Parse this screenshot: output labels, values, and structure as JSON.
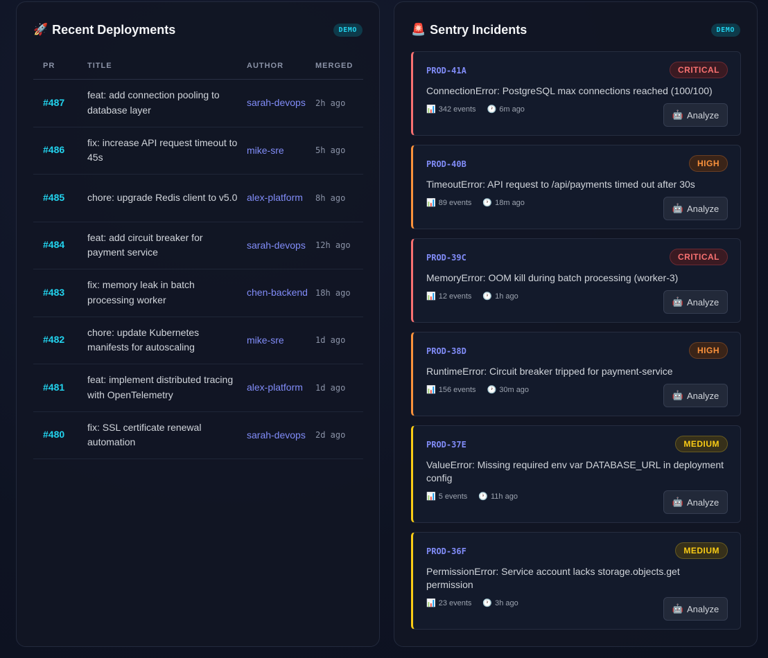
{
  "deployments": {
    "title": "Recent Deployments",
    "icon": "rocket-icon",
    "emoji": "🚀",
    "badge": "DEMO",
    "columns": [
      "PR",
      "TITLE",
      "AUTHOR",
      "MERGED"
    ],
    "rows": [
      {
        "pr": "#487",
        "title": "feat: add connection pooling to database layer",
        "author": "sarah-devops",
        "merged": "2h ago"
      },
      {
        "pr": "#486",
        "title": "fix: increase API request timeout to 45s",
        "author": "mike-sre",
        "merged": "5h ago"
      },
      {
        "pr": "#485",
        "title": "chore: upgrade Redis client to v5.0",
        "author": "alex-platform",
        "merged": "8h ago"
      },
      {
        "pr": "#484",
        "title": "feat: add circuit breaker for payment service",
        "author": "sarah-devops",
        "merged": "12h ago"
      },
      {
        "pr": "#483",
        "title": "fix: memory leak in batch processing worker",
        "author": "chen-backend",
        "merged": "18h ago"
      },
      {
        "pr": "#482",
        "title": "chore: update Kubernetes manifests for autoscaling",
        "author": "mike-sre",
        "merged": "1d ago"
      },
      {
        "pr": "#481",
        "title": "feat: implement distributed tracing with OpenTelemetry",
        "author": "alex-platform",
        "merged": "1d ago"
      },
      {
        "pr": "#480",
        "title": "fix: SSL certificate renewal automation",
        "author": "sarah-devops",
        "merged": "2d ago"
      }
    ]
  },
  "incidents": {
    "title": "Sentry Incidents",
    "icon": "siren-icon",
    "emoji": "🚨",
    "badge": "DEMO",
    "analyze_label": "Analyze",
    "items": [
      {
        "id": "PROD-41A",
        "severity": "CRITICAL",
        "level": "critical",
        "message": "ConnectionError: PostgreSQL max connections reached (100/100)",
        "events": "342 events",
        "time": "6m ago"
      },
      {
        "id": "PROD-40B",
        "severity": "HIGH",
        "level": "high",
        "message": "TimeoutError: API request to /api/payments timed out after 30s",
        "events": "89 events",
        "time": "18m ago"
      },
      {
        "id": "PROD-39C",
        "severity": "CRITICAL",
        "level": "critical",
        "message": "MemoryError: OOM kill during batch processing (worker-3)",
        "events": "12 events",
        "time": "1h ago"
      },
      {
        "id": "PROD-38D",
        "severity": "HIGH",
        "level": "high",
        "message": "RuntimeError: Circuit breaker tripped for payment-service",
        "events": "156 events",
        "time": "30m ago"
      },
      {
        "id": "PROD-37E",
        "severity": "MEDIUM",
        "level": "medium",
        "message": "ValueError: Missing required env var DATABASE_URL in deployment config",
        "events": "5 events",
        "time": "11h ago"
      },
      {
        "id": "PROD-36F",
        "severity": "MEDIUM",
        "level": "medium",
        "message": "PermissionError: Service account lacks storage.objects.get permission",
        "events": "23 events",
        "time": "3h ago"
      }
    ]
  },
  "colors": {
    "accent_cyan": "#22d3ee",
    "author_indigo": "#818cf8",
    "critical": "#f87171",
    "high": "#fb923c",
    "medium": "#facc15"
  }
}
